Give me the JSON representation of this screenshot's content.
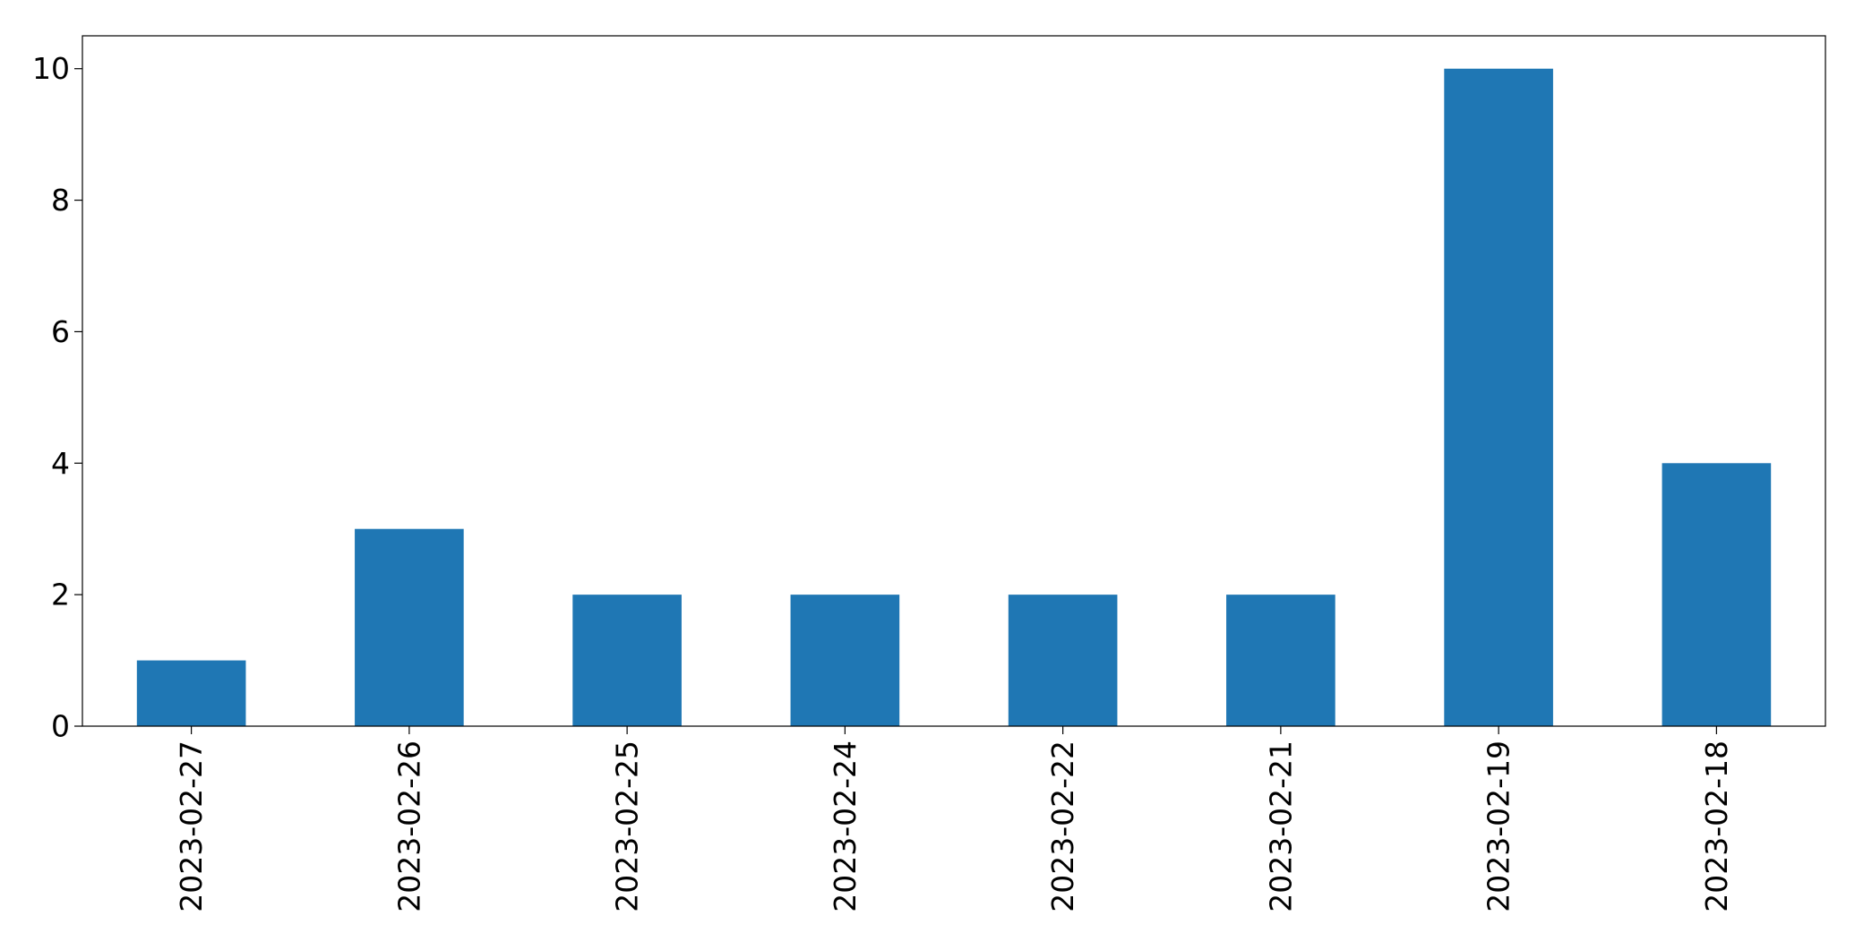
{
  "chart_data": {
    "type": "bar",
    "title": "",
    "xlabel": "",
    "ylabel": "",
    "categories": [
      "2023-02-27",
      "2023-02-26",
      "2023-02-25",
      "2023-02-24",
      "2023-02-22",
      "2023-02-21",
      "2023-02-19",
      "2023-02-18"
    ],
    "values": [
      1,
      3,
      2,
      2,
      2,
      2,
      10,
      4
    ],
    "ylim": [
      0,
      10.5
    ],
    "yticks": [
      0,
      2,
      4,
      6,
      8,
      10
    ],
    "bar_color": "#1f77b4",
    "grid": false,
    "legend": "none"
  }
}
